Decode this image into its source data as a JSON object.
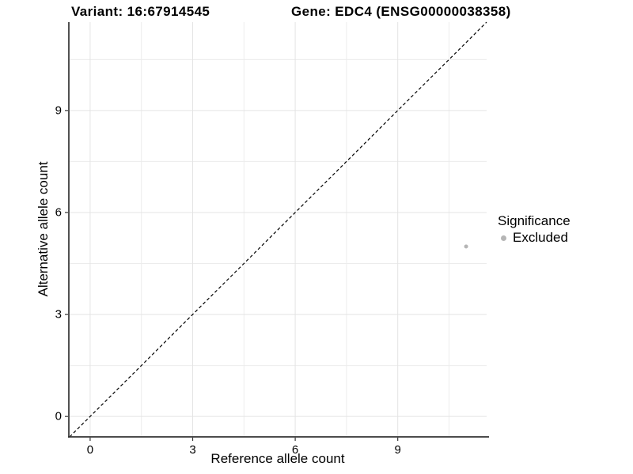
{
  "titles": {
    "variant": "Variant: 16:67914545",
    "gene": "Gene: EDC4 (ENSG00000038358)"
  },
  "legend": {
    "title": "Significance",
    "items": [
      {
        "label": "Excluded",
        "color": "#b5b5b5"
      }
    ]
  },
  "chart_data": {
    "type": "scatter",
    "title": "Variant: 16:67914545 — Gene: EDC4 (ENSG00000038358)",
    "xlabel": "Reference allele count",
    "ylabel": "Alternative allele count",
    "xlim": [
      -0.6,
      11.6
    ],
    "ylim": [
      -0.6,
      11.6
    ],
    "x_ticks": [
      0,
      3,
      6,
      9
    ],
    "y_ticks": [
      0,
      3,
      6,
      9
    ],
    "x_minor_ticks": [
      1.5,
      4.5,
      7.5,
      10.5
    ],
    "y_minor_ticks": [
      1.5,
      4.5,
      7.5,
      10.5
    ],
    "grid": true,
    "legend_position": "right",
    "series": [
      {
        "name": "Excluded",
        "color": "#b5b5b5",
        "point_radius": 2.5,
        "points": [
          [
            11,
            5
          ]
        ]
      }
    ],
    "reference_line": {
      "kind": "identity",
      "slope": 1,
      "intercept": 0,
      "style": "dashed",
      "color": "#000000"
    }
  },
  "style": {
    "background": "#ffffff",
    "grid_major_color": "#e4e4e4",
    "grid_minor_color": "#ececec",
    "axis_line_color": "#333333",
    "tick_color": "#333333",
    "text_color": "#000000"
  }
}
